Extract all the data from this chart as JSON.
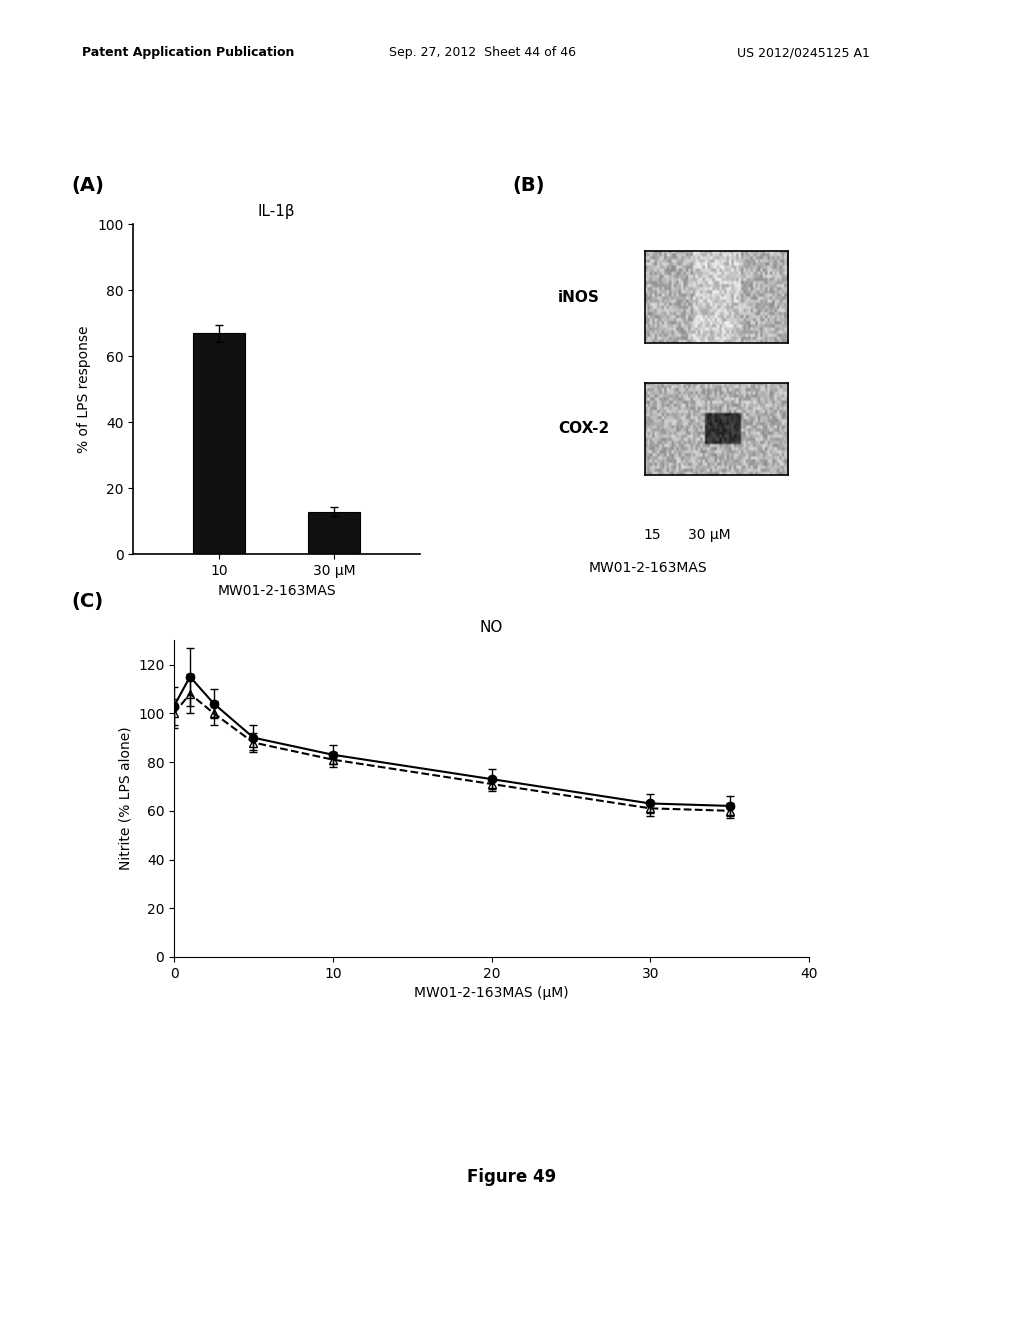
{
  "header_left": "Patent Application Publication",
  "header_mid": "Sep. 27, 2012  Sheet 44 of 46",
  "header_right": "US 2012/0245125 A1",
  "panel_A": {
    "label": "(A)",
    "title": "IL-1β",
    "xlabel": "MW01-2-163MAS",
    "ylabel": "% of LPS response",
    "xtick_labels": [
      "10",
      "30 μM"
    ],
    "bar_values": [
      67,
      13
    ],
    "bar_errors": [
      2.5,
      1.5
    ],
    "bar_color": "#111111",
    "ylim": [
      0,
      100
    ],
    "yticks": [
      0,
      20,
      40,
      60,
      80,
      100
    ]
  },
  "panel_B": {
    "label": "(B)",
    "labels": [
      "iNOS",
      "COX-2"
    ],
    "xlabel": "MW01-2-163MAS",
    "xtick_labels": [
      "15",
      "30 μM"
    ]
  },
  "panel_C": {
    "label": "(C)",
    "title": "NO",
    "xlabel": "MW01-2-163MAS (μM)",
    "ylabel": "Nitrite (% LPS alone)",
    "xlim": [
      0,
      40
    ],
    "ylim": [
      0,
      120
    ],
    "yticks": [
      0,
      20,
      40,
      60,
      80,
      100,
      120
    ],
    "xticks": [
      0,
      10,
      20,
      30,
      40
    ],
    "line1_x": [
      0,
      1,
      2.5,
      5,
      10,
      20,
      30,
      35
    ],
    "line1_y": [
      103,
      115,
      104,
      90,
      83,
      73,
      63,
      62
    ],
    "line1_err": [
      8,
      12,
      6,
      5,
      4,
      4,
      4,
      4
    ],
    "line2_x": [
      0,
      1,
      2.5,
      5,
      10,
      20,
      30,
      35
    ],
    "line2_y": [
      100,
      108,
      100,
      88,
      81,
      71,
      61,
      60
    ],
    "line2_err": [
      6,
      8,
      5,
      4,
      3,
      3,
      3,
      3
    ]
  },
  "figure_label": "Figure 49",
  "bg_color": "#ffffff",
  "text_color": "#000000"
}
